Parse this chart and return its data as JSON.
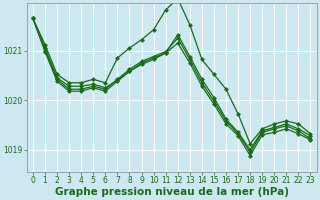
{
  "background_color": "#cde8f0",
  "grid_color": "#ffffff",
  "line_color": "#1a6b1a",
  "xlim": [
    -0.5,
    23.5
  ],
  "ylim": [
    1018.55,
    1021.95
  ],
  "yticks": [
    1019,
    1020,
    1021
  ],
  "xticks": [
    0,
    1,
    2,
    3,
    4,
    5,
    6,
    7,
    8,
    9,
    10,
    11,
    12,
    13,
    14,
    15,
    16,
    17,
    18,
    19,
    20,
    21,
    22,
    23
  ],
  "series": [
    [
      1021.65,
      1021.05,
      1020.45,
      1020.28,
      1020.28,
      1020.32,
      1020.25,
      1020.4,
      1020.58,
      1020.75,
      1020.85,
      1020.95,
      1021.15,
      1020.75,
      1020.28,
      1019.92,
      1019.52,
      1019.28,
      1018.88,
      1019.3,
      1019.35,
      1019.42,
      1019.32,
      1019.2
    ],
    [
      1021.65,
      1021.0,
      1020.42,
      1020.22,
      1020.22,
      1020.28,
      1020.22,
      1020.42,
      1020.62,
      1020.78,
      1020.88,
      1020.98,
      1021.25,
      1020.82,
      1020.35,
      1019.98,
      1019.58,
      1019.32,
      1018.95,
      1019.35,
      1019.42,
      1019.48,
      1019.38,
      1019.22
    ],
    [
      1021.65,
      1020.98,
      1020.38,
      1020.18,
      1020.18,
      1020.25,
      1020.18,
      1020.38,
      1020.58,
      1020.72,
      1020.82,
      1020.95,
      1021.32,
      1020.88,
      1020.42,
      1020.05,
      1019.62,
      1019.35,
      1019.0,
      1019.38,
      1019.45,
      1019.52,
      1019.42,
      1019.28
    ],
    [
      1021.65,
      1021.12,
      1020.52,
      1020.35,
      1020.35,
      1020.42,
      1020.35,
      1020.85,
      1021.05,
      1021.22,
      1021.42,
      1021.82,
      1022.05,
      1021.52,
      1020.82,
      1020.52,
      1020.22,
      1019.72,
      1019.12,
      1019.42,
      1019.52,
      1019.58,
      1019.52,
      1019.32
    ]
  ],
  "xlabel": "Graphe pression niveau de la mer (hPa)",
  "marker_size": 2.5,
  "linewidth": 0.9,
  "tick_fontsize": 5.5,
  "axis_label_fontsize": 7.5
}
